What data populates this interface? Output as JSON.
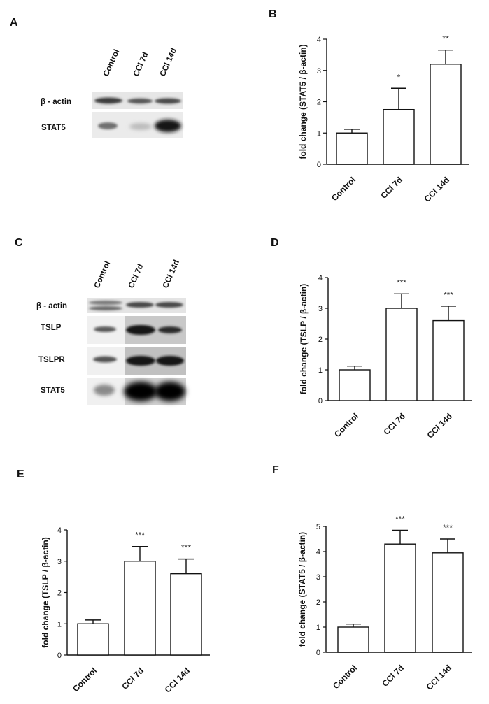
{
  "panels": {
    "A": "A",
    "B": "B",
    "C": "C",
    "D": "D",
    "E": "E",
    "F": "F"
  },
  "blot_a": {
    "lanes": [
      "Control",
      "CCl 7d",
      "CCl 14d"
    ],
    "rows": [
      "β - actin",
      "STAT5"
    ]
  },
  "blot_c": {
    "lanes": [
      "Control",
      "CCl 7d",
      "CCl 14d"
    ],
    "rows": [
      "β - actin",
      "TSLP",
      "TSLPR",
      "STAT5"
    ]
  },
  "chart_data": [
    {
      "panel": "B",
      "type": "bar",
      "categories": [
        "Control",
        "CCl 7d",
        "CCl 14d"
      ],
      "values": [
        1.0,
        1.75,
        3.2
      ],
      "errors": [
        0.12,
        0.68,
        0.45
      ],
      "significance": [
        "",
        "*",
        "**"
      ],
      "ylabel": "fold change (STAT5 / β-actin)",
      "ylim": [
        0,
        4
      ],
      "yticks": [
        "0",
        "1",
        "2",
        "3",
        "4"
      ]
    },
    {
      "panel": "D",
      "type": "bar",
      "categories": [
        "Control",
        "CCl 7d",
        "CCl 14d"
      ],
      "values": [
        1.0,
        3.0,
        2.6
      ],
      "errors": [
        0.12,
        0.47,
        0.47
      ],
      "significance": [
        "",
        "***",
        "***"
      ],
      "ylabel": "fold change (TSLP / β-actin)",
      "ylim": [
        0,
        4
      ],
      "yticks": [
        "0",
        "1",
        "2",
        "3",
        "4"
      ]
    },
    {
      "panel": "E",
      "type": "bar",
      "categories": [
        "Control",
        "CCl 7d",
        "CCl 14d"
      ],
      "values": [
        1.0,
        3.0,
        2.6
      ],
      "errors": [
        0.12,
        0.47,
        0.47
      ],
      "significance": [
        "",
        "***",
        "***"
      ],
      "ylabel": "fold change (TSLP / β-actin)",
      "ylim": [
        0,
        4
      ],
      "yticks": [
        "0",
        "1",
        "2",
        "3",
        "4"
      ]
    },
    {
      "panel": "F",
      "type": "bar",
      "categories": [
        "Control",
        "CCl 7d",
        "CCl 14d"
      ],
      "values": [
        1.0,
        4.3,
        3.95
      ],
      "errors": [
        0.12,
        0.55,
        0.55
      ],
      "significance": [
        "",
        "***",
        "***"
      ],
      "ylabel": "fold change (STAT5 / β-actin)",
      "ylim": [
        0,
        5
      ],
      "yticks": [
        "0",
        "1",
        "2",
        "3",
        "4",
        "5"
      ]
    }
  ]
}
